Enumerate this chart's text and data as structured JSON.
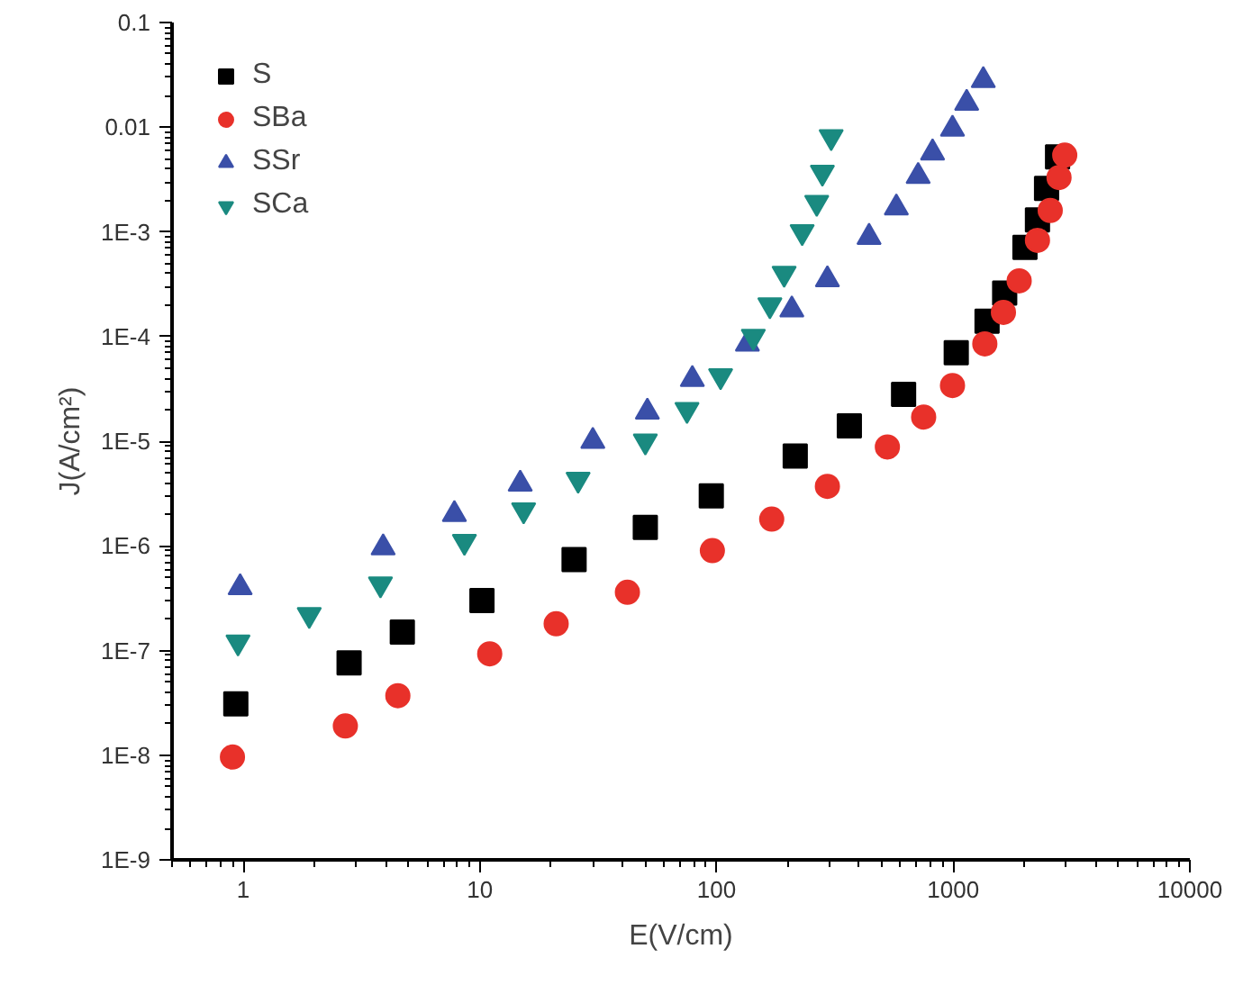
{
  "chart_data": {
    "type": "scatter",
    "xlabel": "E(V/cm)",
    "ylabel": "J(A/cm²)",
    "log": "xy",
    "grid": false,
    "legend": "top left",
    "xlim": [
      0.5,
      10000
    ],
    "xticks": [
      1,
      10,
      100,
      1000,
      10000
    ],
    "ylim": [
      1e-09,
      0.1
    ],
    "yticks": [
      0.1,
      0.01,
      {
        "value": 0.001,
        "label": "1E-3"
      },
      {
        "value": 0.0001,
        "label": "1E-4"
      },
      {
        "value": 1e-05,
        "label": "1E-5"
      },
      {
        "value": 1e-06,
        "label": "1E-6"
      },
      {
        "value": 1e-07,
        "label": "1E-7"
      },
      {
        "value": 1e-08,
        "label": "1E-8"
      },
      {
        "value": 1e-09,
        "label": "1E-9"
      }
    ],
    "series": [
      {
        "name": "S",
        "color": "#000000",
        "marker": "square",
        "x": [
          0.93,
          2.8,
          4.7,
          10.2,
          25,
          50,
          95,
          215,
          364,
          617,
          1030,
          1390,
          1650,
          2010,
          2270,
          2480,
          2760
        ],
        "values": [
          3.1e-08,
          7.6e-08,
          1.5e-07,
          3e-07,
          7.4e-07,
          1.5e-06,
          3e-06,
          7.2e-06,
          1.4e-05,
          2.8e-05,
          7e-05,
          0.00014,
          0.00026,
          0.00071,
          0.0013,
          0.0026,
          0.0052
        ]
      },
      {
        "name": "SBa",
        "color": "#e8312a",
        "marker": "circle",
        "x": [
          0.9,
          2.7,
          4.5,
          11,
          21,
          42,
          96,
          171,
          294,
          527,
          750,
          993,
          1360,
          1630,
          1900,
          2270,
          2570,
          2800,
          2960
        ],
        "values": [
          9.6e-09,
          1.9e-08,
          3.7e-08,
          9.3e-08,
          1.8e-07,
          3.6e-07,
          9e-07,
          1.8e-06,
          3.7e-06,
          8.8e-06,
          1.7e-05,
          3.4e-05,
          8.5e-05,
          0.00017,
          0.00034,
          0.00083,
          0.0016,
          0.0033,
          0.0054
        ]
      },
      {
        "name": "SSr",
        "color": "#3a4fa8",
        "marker": "triangle",
        "x": [
          0.97,
          3.9,
          7.8,
          14.8,
          30,
          51,
          79,
          135,
          208,
          294,
          441,
          575,
          711,
          818,
          993,
          1140,
          1340
        ],
        "values": [
          4e-07,
          9.6e-07,
          2e-06,
          3.9e-06,
          1e-05,
          1.9e-05,
          3.9e-05,
          8.5e-05,
          0.00018,
          0.00035,
          0.00089,
          0.0017,
          0.0034,
          0.0057,
          0.0096,
          0.017,
          0.028
        ]
      },
      {
        "name": "SCa",
        "color": "#1a8a80",
        "marker": "triangle",
        "x": [
          0.95,
          1.9,
          3.8,
          8.6,
          15.3,
          26,
          50,
          75,
          104,
          143,
          168,
          193,
          230,
          265,
          280,
          305
        ],
        "values": [
          1.2e-07,
          2.2e-07,
          4.3e-07,
          1.1e-06,
          2.2e-06,
          4.3e-06,
          1e-05,
          2e-05,
          4.2e-05,
          0.0001,
          0.0002,
          0.0004,
          0.001,
          0.0019,
          0.0037,
          0.0081
        ]
      }
    ]
  }
}
